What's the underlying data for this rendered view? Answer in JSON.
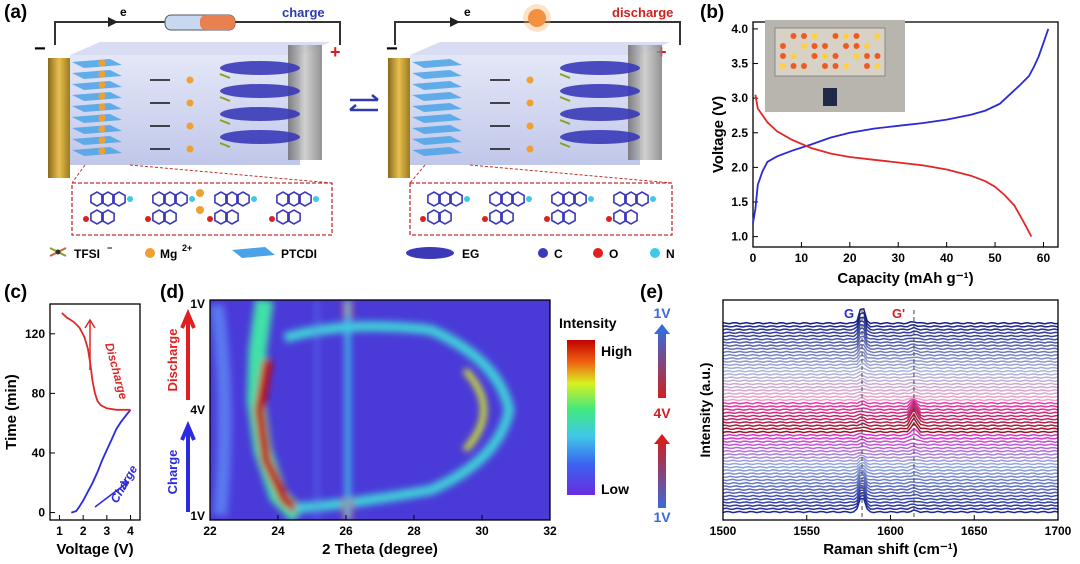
{
  "panels": {
    "a": {
      "label": "(a)",
      "charge_label": "charge",
      "discharge_label": "discharge",
      "electron": "e",
      "minus": "−",
      "plus": "+",
      "legend": [
        {
          "name": "tfsi",
          "text": "TFSI"
        },
        {
          "name": "mg",
          "text": "Mg"
        },
        {
          "name": "ptcdi",
          "text": "PTCDI"
        },
        {
          "name": "eg",
          "text": "EG"
        },
        {
          "name": "c",
          "text": "C"
        },
        {
          "name": "o",
          "text": "O"
        },
        {
          "name": "n",
          "text": "N"
        }
      ],
      "tfsi_sup": "−",
      "mg_sup": "2+",
      "colors": {
        "charge": "#2d3ab0",
        "discharge": "#d02020",
        "mg": "#f0a030",
        "ptcdi": "#4aa3e8",
        "eg": "#3a3ab8",
        "o": "#e02020",
        "n": "#40c8e8"
      }
    },
    "b": {
      "label": "(b)"
    },
    "c": {
      "label": "(c)",
      "discharge_text": "Discharge",
      "charge_text": "Charge"
    },
    "d": {
      "label": "(d)",
      "discharge_text": "Discharge",
      "charge_text": "Charge",
      "colorbar_title": "Intensity",
      "colorbar_high": "High",
      "colorbar_low": "Low"
    },
    "e": {
      "label": "(e)",
      "peak_g": "G",
      "peak_g2": "G'"
    }
  },
  "chart_data": [
    {
      "panel": "b",
      "type": "line",
      "xlabel": "Capacity (mAh g⁻¹)",
      "ylabel": "Voltage (V)",
      "xlim": [
        0,
        63
      ],
      "ylim": [
        0.85,
        4.1
      ],
      "x_ticks": [
        0,
        10,
        20,
        30,
        40,
        50,
        60
      ],
      "y_ticks": [
        "1.0",
        "1.5",
        "2.0",
        "2.5",
        "3.0",
        "3.5",
        "4.0"
      ],
      "series": [
        {
          "color": "#2a2ad8",
          "x": [
            0,
            0.5,
            1,
            2,
            3,
            5,
            8,
            12,
            16,
            20,
            25,
            30,
            35,
            40,
            45,
            48,
            51,
            53,
            55,
            57,
            58,
            59,
            60,
            61
          ],
          "y": [
            1.2,
            1.4,
            1.75,
            1.95,
            2.08,
            2.16,
            2.24,
            2.33,
            2.43,
            2.5,
            2.56,
            2.6,
            2.64,
            2.69,
            2.76,
            2.82,
            2.92,
            3.05,
            3.18,
            3.32,
            3.45,
            3.6,
            3.8,
            4.0
          ]
        },
        {
          "color": "#e02828",
          "x": [
            0.5,
            1,
            2,
            3,
            5,
            8,
            12,
            16,
            20,
            25,
            30,
            35,
            40,
            45,
            48,
            50,
            52,
            54,
            56,
            57.5
          ],
          "y": [
            3.05,
            2.85,
            2.75,
            2.65,
            2.52,
            2.4,
            2.28,
            2.2,
            2.15,
            2.11,
            2.07,
            2.03,
            1.97,
            1.88,
            1.8,
            1.72,
            1.6,
            1.45,
            1.2,
            1.0
          ]
        }
      ]
    },
    {
      "panel": "c",
      "type": "line",
      "xlabel": "Voltage (V)",
      "ylabel": "Time (min)",
      "xlim": [
        0.6,
        4.4
      ],
      "ylim": [
        -5,
        140
      ],
      "x_ticks": [
        1,
        2,
        3,
        4
      ],
      "y_ticks": [
        0,
        40,
        80,
        120
      ],
      "series": [
        {
          "color": "#2a2ae0",
          "x": [
            1.5,
            1.7,
            1.8,
            2.0,
            2.2,
            2.4,
            2.6,
            2.8,
            3.0,
            3.2,
            3.4,
            3.6,
            3.8,
            4.0
          ],
          "y": [
            0,
            1,
            3,
            8,
            14,
            20,
            27,
            35,
            42,
            49,
            56,
            61,
            65,
            69
          ]
        },
        {
          "color": "#e02828",
          "x": [
            4.0,
            3.4,
            3.0,
            2.75,
            2.6,
            2.5,
            2.4,
            2.3,
            2.2,
            2.05,
            1.85,
            1.6,
            1.3,
            1.1
          ],
          "y": [
            69,
            69,
            70,
            72,
            75,
            80,
            88,
            100,
            110,
            118,
            124,
            128,
            131,
            134
          ]
        }
      ]
    },
    {
      "panel": "d",
      "type": "heatmap",
      "xlabel": "2 Theta (degree)",
      "xlim": [
        22,
        32
      ],
      "x_ticks": [
        22,
        24,
        26,
        28,
        30,
        32
      ],
      "y_ticks": [
        "1V",
        "4V",
        "1V"
      ]
    },
    {
      "panel": "e",
      "type": "line",
      "xlabel": "Raman shift (cm⁻¹)",
      "ylabel": "Intensity (a.u.)",
      "xlim": [
        1500,
        1700
      ],
      "x_ticks": [
        1500,
        1550,
        1600,
        1650,
        1700
      ],
      "y_ticks": [
        "1V",
        "4V",
        "1V"
      ],
      "peaks": [
        1583,
        1614
      ]
    }
  ]
}
